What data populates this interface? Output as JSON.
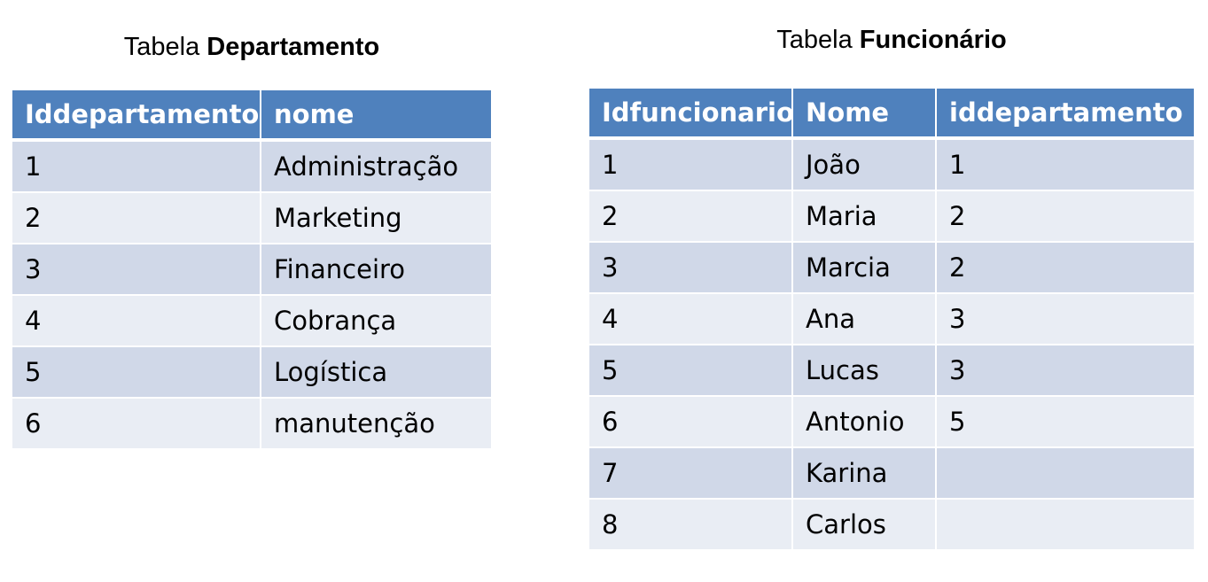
{
  "departamento": {
    "title_prefix": "Tabela ",
    "title_bold": "Departamento",
    "headers": [
      "Iddepartamento",
      "nome"
    ],
    "rows": [
      [
        "1",
        "Administração"
      ],
      [
        "2",
        "Marketing"
      ],
      [
        "3",
        "Financeiro"
      ],
      [
        "4",
        "Cobrança"
      ],
      [
        "5",
        "Logística"
      ],
      [
        "6",
        "manutenção"
      ]
    ]
  },
  "funcionario": {
    "title_prefix": "Tabela ",
    "title_bold": "Funcionário",
    "headers": [
      "Idfuncionario",
      "Nome",
      "iddepartamento"
    ],
    "rows": [
      [
        "1",
        "João",
        "1"
      ],
      [
        "2",
        "Maria",
        "2"
      ],
      [
        "3",
        "Marcia",
        "2"
      ],
      [
        "4",
        "Ana",
        "3"
      ],
      [
        "5",
        "Lucas",
        "3"
      ],
      [
        "6",
        "Antonio",
        "5"
      ],
      [
        "7",
        "Karina",
        ""
      ],
      [
        "8",
        "Carlos",
        ""
      ]
    ]
  },
  "colors": {
    "header": "#4f81bd",
    "row_dark": "#d0d8e8",
    "row_light": "#e9edf4"
  }
}
